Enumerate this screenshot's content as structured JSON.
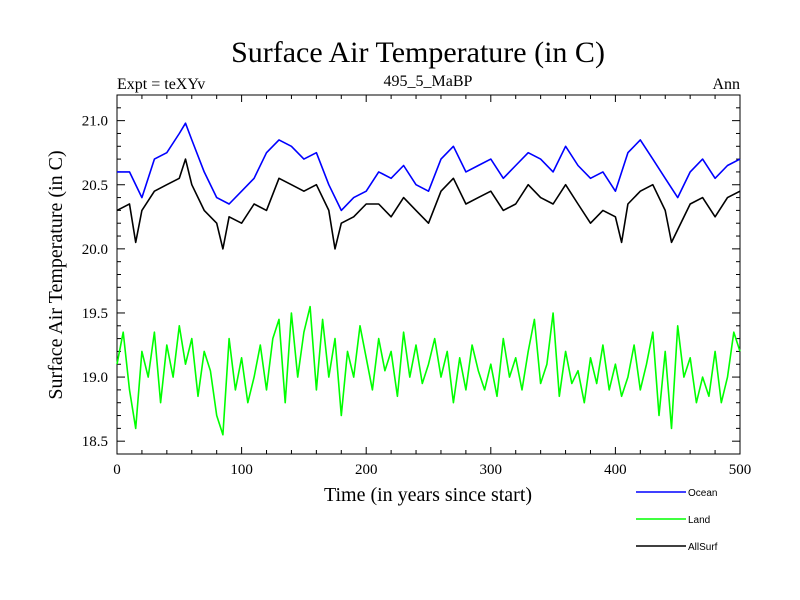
{
  "header": {
    "title": "Surface Air Temperature (in C)",
    "left": "Expt = teXYv",
    "center": "495_5_MaBP",
    "right": "Ann"
  },
  "chart_data": {
    "type": "line",
    "title": "Surface Air Temperature (in C)",
    "xlabel": "Time (in years since start)",
    "ylabel": "Surface Air Temperature (in C)",
    "xlim": [
      0,
      500
    ],
    "ylim": [
      18.4,
      21.2
    ],
    "x_ticks": [
      0,
      100,
      200,
      300,
      400,
      500
    ],
    "y_ticks": [
      18.5,
      19.0,
      19.5,
      20.0,
      20.5,
      21.0
    ],
    "x_tick_labels": [
      "0",
      "100",
      "200",
      "300",
      "400",
      "500"
    ],
    "y_tick_labels": [
      "18.5",
      "19.0",
      "19.5",
      "20.0",
      "20.5",
      "21.0"
    ],
    "grid": false,
    "legend_position": "bottom-right, below plot",
    "series": [
      {
        "name": "Ocean",
        "color": "#0000ff",
        "x": [
          0,
          10,
          20,
          30,
          40,
          50,
          55,
          60,
          70,
          80,
          90,
          100,
          110,
          120,
          130,
          140,
          150,
          160,
          170,
          180,
          190,
          200,
          210,
          220,
          230,
          240,
          250,
          260,
          270,
          280,
          290,
          300,
          310,
          320,
          330,
          340,
          350,
          360,
          370,
          380,
          390,
          400,
          410,
          420,
          430,
          440,
          450,
          460,
          470,
          480,
          490,
          500
        ],
        "values": [
          20.6,
          20.6,
          20.4,
          20.7,
          20.75,
          20.9,
          20.98,
          20.85,
          20.6,
          20.4,
          20.35,
          20.45,
          20.55,
          20.75,
          20.85,
          20.8,
          20.7,
          20.75,
          20.5,
          20.3,
          20.4,
          20.45,
          20.6,
          20.55,
          20.65,
          20.5,
          20.45,
          20.7,
          20.8,
          20.6,
          20.65,
          20.7,
          20.55,
          20.65,
          20.75,
          20.7,
          20.6,
          20.8,
          20.65,
          20.55,
          20.6,
          20.45,
          20.75,
          20.85,
          20.7,
          20.55,
          20.4,
          20.6,
          20.7,
          20.55,
          20.65,
          20.7
        ]
      },
      {
        "name": "Land",
        "color": "#00ff00",
        "x": [
          0,
          5,
          10,
          15,
          20,
          25,
          30,
          35,
          40,
          45,
          50,
          55,
          60,
          65,
          70,
          75,
          80,
          85,
          90,
          95,
          100,
          105,
          110,
          115,
          120,
          125,
          130,
          135,
          140,
          145,
          150,
          155,
          160,
          165,
          170,
          175,
          180,
          185,
          190,
          195,
          200,
          205,
          210,
          215,
          220,
          225,
          230,
          235,
          240,
          245,
          250,
          255,
          260,
          265,
          270,
          275,
          280,
          285,
          290,
          295,
          300,
          305,
          310,
          315,
          320,
          325,
          330,
          335,
          340,
          345,
          350,
          355,
          360,
          365,
          370,
          375,
          380,
          385,
          390,
          395,
          400,
          405,
          410,
          415,
          420,
          425,
          430,
          435,
          440,
          445,
          450,
          455,
          460,
          465,
          470,
          475,
          480,
          485,
          490,
          495,
          500
        ],
        "values": [
          19.1,
          19.35,
          18.9,
          18.6,
          19.2,
          19.0,
          19.35,
          18.8,
          19.25,
          19.0,
          19.4,
          19.1,
          19.3,
          18.85,
          19.2,
          19.05,
          18.7,
          18.55,
          19.3,
          18.9,
          19.15,
          18.8,
          19.0,
          19.25,
          18.9,
          19.3,
          19.45,
          18.8,
          19.5,
          19.0,
          19.35,
          19.55,
          18.9,
          19.45,
          19.0,
          19.3,
          18.7,
          19.2,
          19.0,
          19.4,
          19.15,
          18.9,
          19.3,
          19.05,
          19.2,
          18.85,
          19.35,
          19.0,
          19.25,
          18.95,
          19.1,
          19.3,
          19.0,
          19.2,
          18.8,
          19.15,
          18.9,
          19.25,
          19.05,
          18.9,
          19.1,
          18.85,
          19.3,
          19.0,
          19.15,
          18.9,
          19.2,
          19.45,
          18.95,
          19.1,
          19.5,
          18.85,
          19.2,
          18.95,
          19.05,
          18.8,
          19.15,
          18.95,
          19.25,
          18.9,
          19.1,
          18.85,
          19.0,
          19.25,
          18.9,
          19.1,
          19.35,
          18.7,
          19.2,
          18.6,
          19.4,
          19.0,
          19.15,
          18.8,
          19.0,
          18.85,
          19.2,
          18.8,
          19.0,
          19.35,
          19.2
        ]
      },
      {
        "name": "AllSurf",
        "color": "#000000",
        "x": [
          0,
          10,
          15,
          20,
          30,
          40,
          50,
          55,
          60,
          70,
          80,
          85,
          90,
          100,
          110,
          120,
          130,
          140,
          150,
          160,
          170,
          175,
          180,
          190,
          200,
          210,
          220,
          230,
          240,
          250,
          260,
          270,
          280,
          290,
          300,
          310,
          320,
          330,
          340,
          350,
          360,
          370,
          380,
          390,
          400,
          405,
          410,
          420,
          430,
          440,
          445,
          450,
          460,
          470,
          480,
          490,
          500
        ],
        "values": [
          20.3,
          20.35,
          20.05,
          20.3,
          20.45,
          20.5,
          20.55,
          20.7,
          20.5,
          20.3,
          20.2,
          20.0,
          20.25,
          20.2,
          20.35,
          20.3,
          20.55,
          20.5,
          20.45,
          20.5,
          20.3,
          20.0,
          20.2,
          20.25,
          20.35,
          20.35,
          20.25,
          20.4,
          20.3,
          20.2,
          20.45,
          20.55,
          20.35,
          20.4,
          20.45,
          20.3,
          20.35,
          20.5,
          20.4,
          20.35,
          20.5,
          20.35,
          20.2,
          20.3,
          20.25,
          20.05,
          20.35,
          20.45,
          20.5,
          20.3,
          20.05,
          20.15,
          20.35,
          20.4,
          20.25,
          20.4,
          20.45
        ]
      }
    ]
  }
}
